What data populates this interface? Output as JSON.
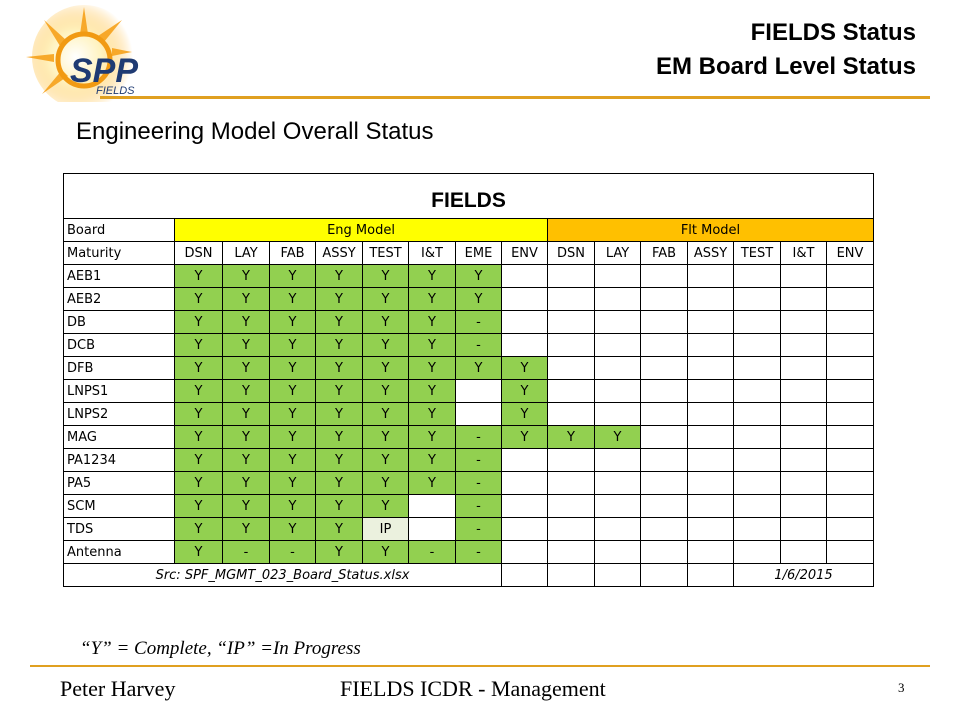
{
  "logo": {
    "text_main": "SPP",
    "text_sub": "FIELDS"
  },
  "header": {
    "line1": "FIELDS Status",
    "line2": "EM Board Level Status"
  },
  "subtitle": "Engineering Model Overall Status",
  "table": {
    "title": "FIELDS",
    "board_label": "Board",
    "eng_model_label": "Eng Model",
    "flt_model_label": "Flt Model",
    "maturity_label": "Maturity",
    "columns": [
      "DSN",
      "LAY",
      "FAB",
      "ASSY",
      "TEST",
      "I&T",
      "EME",
      "ENV",
      "DSN",
      "LAY",
      "FAB",
      "ASSY",
      "TEST",
      "I&T",
      "ENV"
    ],
    "rows": [
      {
        "name": "AEB1",
        "cells": [
          "Y",
          "Y",
          "Y",
          "Y",
          "Y",
          "Y",
          "Y",
          "",
          "",
          "",
          "",
          "",
          "",
          "",
          ""
        ]
      },
      {
        "name": "AEB2",
        "cells": [
          "Y",
          "Y",
          "Y",
          "Y",
          "Y",
          "Y",
          "Y",
          "",
          "",
          "",
          "",
          "",
          "",
          "",
          ""
        ]
      },
      {
        "name": "DB",
        "cells": [
          "Y",
          "Y",
          "Y",
          "Y",
          "Y",
          "Y",
          "-",
          "",
          "",
          "",
          "",
          "",
          "",
          "",
          ""
        ]
      },
      {
        "name": "DCB",
        "cells": [
          "Y",
          "Y",
          "Y",
          "Y",
          "Y",
          "Y",
          "-",
          "",
          "",
          "",
          "",
          "",
          "",
          "",
          ""
        ]
      },
      {
        "name": "DFB",
        "cells": [
          "Y",
          "Y",
          "Y",
          "Y",
          "Y",
          "Y",
          "Y",
          "Y",
          "",
          "",
          "",
          "",
          "",
          "",
          ""
        ]
      },
      {
        "name": "LNPS1",
        "cells": [
          "Y",
          "Y",
          "Y",
          "Y",
          "Y",
          "Y",
          "",
          "Y",
          "",
          "",
          "",
          "",
          "",
          "",
          ""
        ]
      },
      {
        "name": "LNPS2",
        "cells": [
          "Y",
          "Y",
          "Y",
          "Y",
          "Y",
          "Y",
          "",
          "Y",
          "",
          "",
          "",
          "",
          "",
          "",
          ""
        ]
      },
      {
        "name": "MAG",
        "cells": [
          "Y",
          "Y",
          "Y",
          "Y",
          "Y",
          "Y",
          "-",
          "Y",
          "Y",
          "Y",
          "",
          "",
          "",
          "",
          ""
        ]
      },
      {
        "name": "PA1234",
        "cells": [
          "Y",
          "Y",
          "Y",
          "Y",
          "Y",
          "Y",
          "-",
          "",
          "",
          "",
          "",
          "",
          "",
          "",
          ""
        ]
      },
      {
        "name": "PA5",
        "cells": [
          "Y",
          "Y",
          "Y",
          "Y",
          "Y",
          "Y",
          "-",
          "",
          "",
          "",
          "",
          "",
          "",
          "",
          ""
        ]
      },
      {
        "name": "SCM",
        "cells": [
          "Y",
          "Y",
          "Y",
          "Y",
          "Y",
          "",
          "-",
          "",
          "",
          "",
          "",
          "",
          "",
          "",
          ""
        ]
      },
      {
        "name": "TDS",
        "cells": [
          "Y",
          "Y",
          "Y",
          "Y",
          "IP",
          "",
          "-",
          "",
          "",
          "",
          "",
          "",
          "",
          "",
          ""
        ]
      },
      {
        "name": "Antenna",
        "cells": [
          "Y",
          "-",
          "-",
          "Y",
          "Y",
          "-",
          "-",
          "",
          "",
          "",
          "",
          "",
          "",
          "",
          ""
        ]
      }
    ],
    "source": "Src: SPF_MGMT_023_Board_Status.xlsx",
    "date": "1/6/2015"
  },
  "legend": "“Y” = Complete, “IP” =In Progress",
  "footer": {
    "author": "Peter Harvey",
    "title": "FIELDS  ICDR - Management",
    "page": "3"
  },
  "colors": {
    "complete": "#92d050",
    "in_progress": "#ebf1de",
    "eng_header": "#ffff00",
    "flt_header": "#ffc000",
    "rule": "#e0a020"
  }
}
